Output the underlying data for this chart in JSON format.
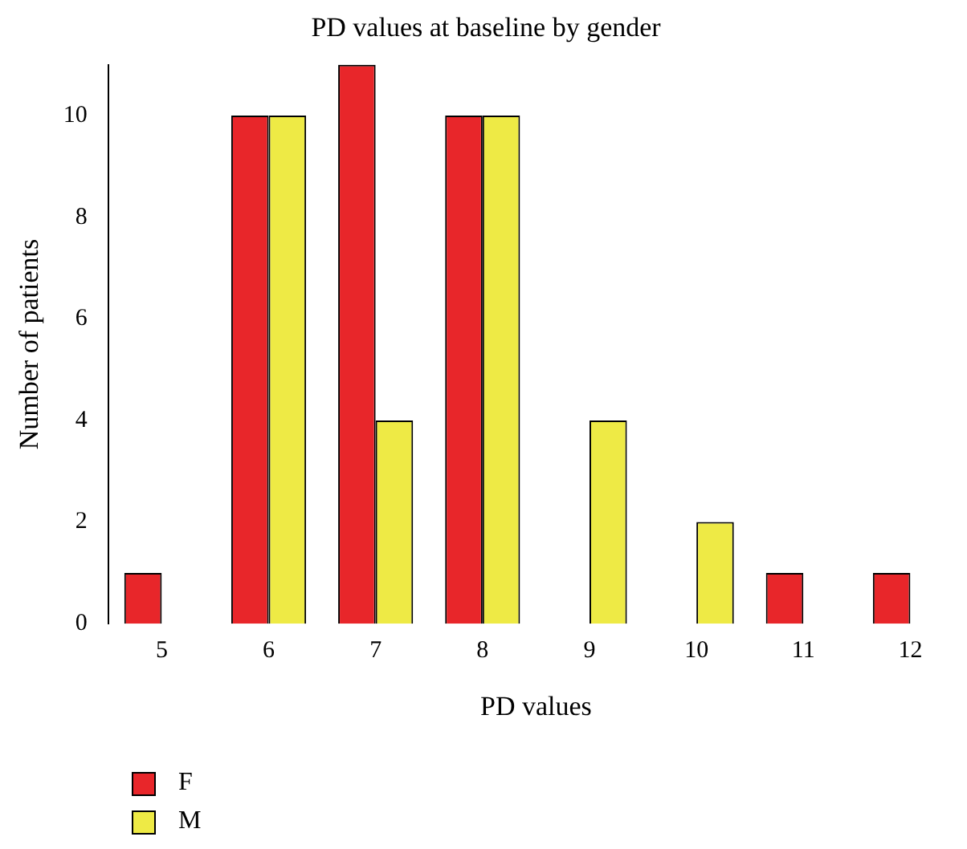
{
  "chart_data": {
    "type": "bar",
    "title": "PD values at baseline by gender",
    "xlabel": "PD values",
    "ylabel": "Number of patients",
    "categories": [
      "5",
      "6",
      "7",
      "8",
      "9",
      "10",
      "11",
      "12"
    ],
    "series": [
      {
        "name": "F",
        "color": "#e8262a",
        "values": [
          1,
          10,
          11,
          10,
          0,
          0,
          1,
          1
        ]
      },
      {
        "name": "M",
        "color": "#eeea45",
        "values": [
          0,
          10,
          4,
          10,
          4,
          2,
          0,
          0
        ]
      }
    ],
    "ylim": [
      0,
      11
    ],
    "yticks": [
      0,
      2,
      4,
      6,
      8,
      10
    ],
    "grid": false,
    "legend": "bottom left"
  }
}
